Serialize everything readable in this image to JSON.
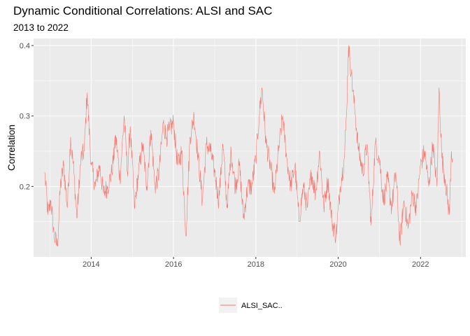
{
  "chart_data": {
    "type": "line",
    "title": "Dynamic Conditional Correlations: ALSI and SAC",
    "subtitle": "2013 to 2022",
    "xlabel": "",
    "ylabel": "Correlation",
    "xlim": [
      2012.6,
      2023.1
    ],
    "ylim": [
      0.1,
      0.41
    ],
    "x_ticks": [
      2014,
      2016,
      2018,
      2020,
      2022
    ],
    "x_tick_labels": [
      "2014",
      "2016",
      "2018",
      "2020",
      "2022"
    ],
    "y_ticks": [
      0.2,
      0.3,
      0.4
    ],
    "y_tick_labels": [
      "0.2",
      "0.3",
      "0.4"
    ],
    "grid": true,
    "legend_position": "bottom",
    "series": [
      {
        "name": "ALSI_SAC..",
        "color": "#F8766D",
        "x": [
          2012.87,
          2012.95,
          2013.02,
          2013.1,
          2013.18,
          2013.25,
          2013.33,
          2013.42,
          2013.5,
          2013.58,
          2013.65,
          2013.75,
          2013.83,
          2013.9,
          2014.0,
          2014.1,
          2014.2,
          2014.3,
          2014.4,
          2014.5,
          2014.6,
          2014.7,
          2014.8,
          2014.88,
          2014.95,
          2015.05,
          2015.15,
          2015.25,
          2015.35,
          2015.45,
          2015.55,
          2015.65,
          2015.75,
          2015.83,
          2015.9,
          2016.0,
          2016.1,
          2016.2,
          2016.3,
          2016.4,
          2016.5,
          2016.6,
          2016.7,
          2016.8,
          2016.9,
          2017.0,
          2017.1,
          2017.2,
          2017.3,
          2017.4,
          2017.5,
          2017.6,
          2017.7,
          2017.8,
          2017.9,
          2018.0,
          2018.08,
          2018.15,
          2018.25,
          2018.35,
          2018.45,
          2018.55,
          2018.65,
          2018.75,
          2018.85,
          2018.95,
          2019.05,
          2019.15,
          2019.25,
          2019.35,
          2019.45,
          2019.55,
          2019.65,
          2019.75,
          2019.85,
          2019.95,
          2020.05,
          2020.15,
          2020.2,
          2020.25,
          2020.32,
          2020.4,
          2020.5,
          2020.6,
          2020.7,
          2020.8,
          2020.9,
          2021.0,
          2021.1,
          2021.2,
          2021.3,
          2021.4,
          2021.5,
          2021.6,
          2021.7,
          2021.8,
          2021.9,
          2022.0,
          2022.1,
          2022.2,
          2022.3,
          2022.4,
          2022.45,
          2022.52,
          2022.6,
          2022.7,
          2022.75,
          2022.78
        ],
        "values": [
          0.22,
          0.16,
          0.18,
          0.13,
          0.115,
          0.2,
          0.23,
          0.17,
          0.27,
          0.22,
          0.155,
          0.24,
          0.25,
          0.333,
          0.23,
          0.2,
          0.23,
          0.19,
          0.2,
          0.22,
          0.27,
          0.21,
          0.3,
          0.22,
          0.285,
          0.17,
          0.22,
          0.26,
          0.2,
          0.28,
          0.2,
          0.22,
          0.29,
          0.27,
          0.28,
          0.29,
          0.23,
          0.25,
          0.13,
          0.27,
          0.3,
          0.24,
          0.18,
          0.26,
          0.25,
          0.22,
          0.18,
          0.26,
          0.17,
          0.25,
          0.2,
          0.23,
          0.155,
          0.2,
          0.2,
          0.24,
          0.3,
          0.34,
          0.26,
          0.23,
          0.19,
          0.25,
          0.3,
          0.24,
          0.2,
          0.23,
          0.15,
          0.2,
          0.17,
          0.22,
          0.19,
          0.25,
          0.17,
          0.21,
          0.15,
          0.13,
          0.2,
          0.24,
          0.3,
          0.4,
          0.36,
          0.31,
          0.25,
          0.22,
          0.26,
          0.145,
          0.26,
          0.24,
          0.18,
          0.21,
          0.17,
          0.22,
          0.12,
          0.18,
          0.14,
          0.19,
          0.17,
          0.23,
          0.25,
          0.2,
          0.26,
          0.2,
          0.34,
          0.24,
          0.21,
          0.16,
          0.25,
          0.24
        ]
      }
    ]
  }
}
